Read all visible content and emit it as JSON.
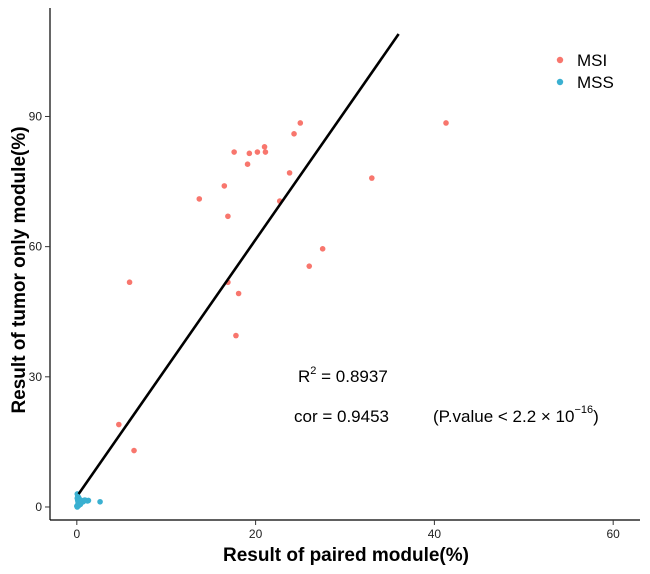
{
  "chart_data": {
    "type": "scatter",
    "xlabel": "Result of paired module(%)",
    "ylabel": "Result of tumor only module(%)",
    "xlim": [
      -3,
      63
    ],
    "ylim": [
      -3,
      115
    ],
    "xticks": [
      0,
      20,
      40,
      60
    ],
    "yticks": [
      0,
      30,
      60,
      90
    ],
    "grid": false,
    "legend_position": "top-right",
    "series": [
      {
        "name": "MSI",
        "color": "#f8766d",
        "points": [
          [
            41.3,
            88.5
          ],
          [
            33.0,
            75.8
          ],
          [
            27.5,
            59.5
          ],
          [
            26.0,
            55.5
          ],
          [
            25.0,
            88.5
          ],
          [
            24.3,
            86.0
          ],
          [
            23.8,
            77.0
          ],
          [
            22.7,
            70.5
          ],
          [
            21.0,
            83.0
          ],
          [
            21.1,
            81.8
          ],
          [
            20.2,
            81.8
          ],
          [
            19.3,
            81.5
          ],
          [
            19.1,
            79.0
          ],
          [
            17.6,
            81.8
          ],
          [
            16.5,
            74.0
          ],
          [
            16.9,
            67.0
          ],
          [
            13.7,
            71.0
          ],
          [
            16.9,
            51.8
          ],
          [
            18.1,
            49.2
          ],
          [
            17.8,
            39.5
          ],
          [
            5.9,
            51.8
          ],
          [
            6.4,
            13.0
          ],
          [
            4.7,
            19.0
          ]
        ]
      },
      {
        "name": "MSS",
        "color": "#3ab0d1",
        "points": [
          [
            0.05,
            0.0
          ],
          [
            0.1,
            0.5
          ],
          [
            0.15,
            1.0
          ],
          [
            0.1,
            1.5
          ],
          [
            0.05,
            2.0
          ],
          [
            0.1,
            2.5
          ],
          [
            0.05,
            3.0
          ],
          [
            0.2,
            0.3
          ],
          [
            0.3,
            0.8
          ],
          [
            0.25,
            1.2
          ],
          [
            0.4,
            0.6
          ],
          [
            0.5,
            1.0
          ],
          [
            0.6,
            1.4
          ],
          [
            0.7,
            1.2
          ],
          [
            0.8,
            1.5
          ],
          [
            0.9,
            1.6
          ],
          [
            1.0,
            1.5
          ],
          [
            1.2,
            1.4
          ],
          [
            1.3,
            1.5
          ],
          [
            0.2,
            2.2
          ],
          [
            0.35,
            1.7
          ],
          [
            0.0,
            0.2
          ],
          [
            2.6,
            1.2
          ]
        ]
      }
    ],
    "fit_line": {
      "x": [
        0.2,
        36.0
      ],
      "y": [
        3.0,
        109.0
      ],
      "color": "#000000"
    },
    "annotations": {
      "r2_base": "R",
      "r2_sup": "2",
      "r2_value": " = 0.8937",
      "cor_text": "cor = 0.9453",
      "pvalue_text": "(P.value < 2.2 × 10",
      "pvalue_sup": "−16",
      "pvalue_close": ")"
    }
  }
}
